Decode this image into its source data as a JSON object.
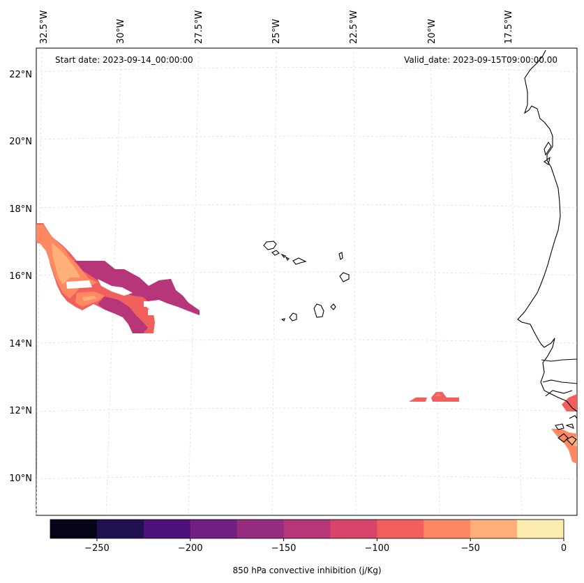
{
  "map": {
    "start_label": "Start date: 2023-09-14_00:00:00",
    "valid_label": "Valid_date: 2023-09-15T09:00:00.00",
    "lon_labels": [
      "32.5°W",
      "30°W",
      "27.5°W",
      "25°W",
      "22.5°W",
      "20°W",
      "17.5°W"
    ],
    "lat_labels": [
      "22°N",
      "20°N",
      "18°N",
      "16°N",
      "14°N",
      "12°N",
      "10°N"
    ]
  },
  "colorbar": {
    "title": "850 hPa convective inhibition (j/Kg)",
    "ticks": [
      "−250",
      "−200",
      "−150",
      "−100",
      "−50",
      "0"
    ],
    "colors": [
      "#050417",
      "#221150",
      "#4f117b",
      "#721f81",
      "#952c80",
      "#b63679",
      "#d8456c",
      "#f1605d",
      "#fc8961",
      "#feb078",
      "#fcecaf"
    ]
  },
  "colors": {
    "cin_low": "#b63679",
    "cin_mid": "#f1605d",
    "cin_high": "#fc8961",
    "cin_top": "#feb078",
    "coast": "#000000",
    "grid": "#d9d9d9"
  }
}
